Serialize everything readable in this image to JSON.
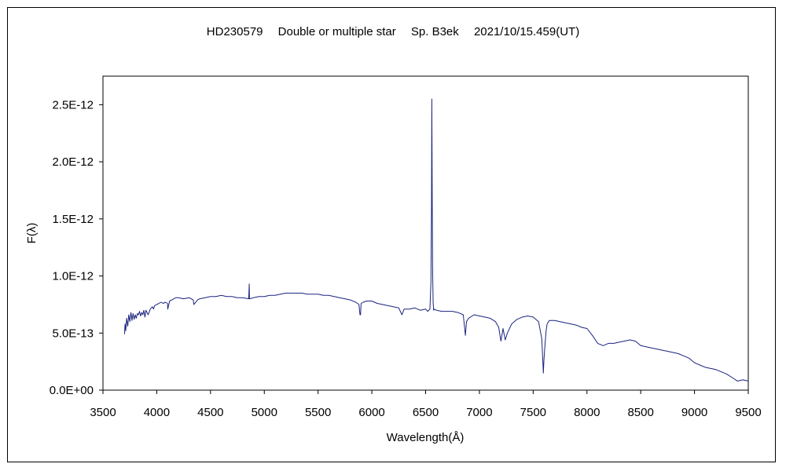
{
  "chart_data": {
    "type": "line",
    "title": "HD230579　 Double or multiple star 　Sp. B3ek 　2021/10/15.459(UT)",
    "xlabel": "Wavelength(Å)",
    "ylabel": "F(λ)",
    "xlim": [
      3500,
      9500
    ],
    "ylim": [
      0,
      2.75e-12
    ],
    "x_ticks": [
      3500,
      4000,
      4500,
      5000,
      5500,
      6000,
      6500,
      7000,
      7500,
      8000,
      8500,
      9000,
      9500
    ],
    "x_tick_labels": [
      "3500",
      "4000",
      "4500",
      "5000",
      "5500",
      "6000",
      "6500",
      "7000",
      "7500",
      "8000",
      "8500",
      "9000",
      "9500"
    ],
    "y_ticks": [
      0,
      5e-13,
      1e-12,
      1.5e-12,
      2e-12,
      2.5e-12
    ],
    "y_tick_labels": [
      "0.0E+00",
      "5.0E-13",
      "1.0E-12",
      "1.5E-12",
      "2.0E-12",
      "2.5E-12"
    ],
    "grid": false,
    "legend": "none",
    "line_color": "#1a237e",
    "series": [
      {
        "color": "#1a237e",
        "x": [
          3700,
          3705,
          3712,
          3720,
          3730,
          3740,
          3750,
          3760,
          3770,
          3780,
          3790,
          3800,
          3810,
          3820,
          3830,
          3840,
          3850,
          3860,
          3870,
          3880,
          3890,
          3900,
          3920,
          3940,
          3960,
          3970,
          3980,
          4000,
          4020,
          4040,
          4060,
          4080,
          4100,
          4102,
          4120,
          4140,
          4160,
          4180,
          4200,
          4250,
          4300,
          4340,
          4345,
          4380,
          4400,
          4450,
          4500,
          4550,
          4600,
          4650,
          4700,
          4750,
          4800,
          4855,
          4860,
          4862,
          4865,
          4900,
          4950,
          5000,
          5050,
          5100,
          5150,
          5200,
          5250,
          5300,
          5350,
          5400,
          5450,
          5500,
          5550,
          5600,
          5650,
          5700,
          5750,
          5800,
          5850,
          5880,
          5890,
          5895,
          5900,
          5920,
          5950,
          6000,
          6050,
          6100,
          6150,
          6200,
          6250,
          6280,
          6300,
          6350,
          6400,
          6450,
          6500,
          6520,
          6540,
          6550,
          6555,
          6558,
          6562,
          6566,
          6570,
          6575,
          6580,
          6600,
          6650,
          6700,
          6750,
          6800,
          6850,
          6870,
          6880,
          6900,
          6950,
          7000,
          7050,
          7100,
          7150,
          7180,
          7200,
          7220,
          7240,
          7260,
          7300,
          7350,
          7400,
          7450,
          7500,
          7550,
          7580,
          7595,
          7600,
          7610,
          7620,
          7630,
          7650,
          7700,
          7750,
          7800,
          7850,
          7900,
          7950,
          8000,
          8050,
          8100,
          8150,
          8200,
          8250,
          8300,
          8350,
          8400,
          8450,
          8500,
          8550,
          8600,
          8650,
          8700,
          8750,
          8800,
          8850,
          8900,
          8950,
          9000,
          9050,
          9100,
          9150,
          9200,
          9250,
          9300,
          9350,
          9400,
          9450,
          9500
        ],
        "y": [
          4.9e-13,
          5.8e-13,
          5.2e-13,
          6.3e-13,
          5.6e-13,
          6.6e-13,
          6e-13,
          6.8e-13,
          6.1e-13,
          6.7e-13,
          6.2e-13,
          6.6e-13,
          6.3e-13,
          6.7e-13,
          6.6e-13,
          6.9e-13,
          6.5e-13,
          6.8e-13,
          6.6e-13,
          7e-13,
          6.4e-13,
          7e-13,
          6.6e-13,
          7.1e-13,
          7.3e-13,
          7.1e-13,
          7.4e-13,
          7.5e-13,
          7.6e-13,
          7.7e-13,
          7.6e-13,
          7.7e-13,
          7.6e-13,
          7.1e-13,
          7.8e-13,
          7.9e-13,
          8e-13,
          8.1e-13,
          8.1e-13,
          8e-13,
          8.1e-13,
          7.9e-13,
          7.5e-13,
          7.9e-13,
          8e-13,
          8.1e-13,
          8.2e-13,
          8.2e-13,
          8.3e-13,
          8.2e-13,
          8.2e-13,
          8.1e-13,
          8.1e-13,
          8e-13,
          9.3e-13,
          8e-13,
          8e-13,
          8.1e-13,
          8.2e-13,
          8.2e-13,
          8.3e-13,
          8.3e-13,
          8.4e-13,
          8.5e-13,
          8.5e-13,
          8.5e-13,
          8.5e-13,
          8.4e-13,
          8.4e-13,
          8.4e-13,
          8.3e-13,
          8.3e-13,
          8.2e-13,
          8.1e-13,
          8e-13,
          7.9e-13,
          7.7e-13,
          7.5e-13,
          6.6e-13,
          6.6e-13,
          7.6e-13,
          7.7e-13,
          7.8e-13,
          7.8e-13,
          7.6e-13,
          7.5e-13,
          7.4e-13,
          7.3e-13,
          7.2e-13,
          6.6e-13,
          7.1e-13,
          7.1e-13,
          7.2e-13,
          7e-13,
          7.1e-13,
          6.9e-13,
          7.1e-13,
          9.5e-13,
          1.6e-12,
          2.55e-12,
          1.5e-12,
          1e-12,
          7.6e-13,
          7e-13,
          7.1e-13,
          7e-13,
          6.9e-13,
          6.9e-13,
          6.9e-13,
          6.8e-13,
          6.6e-13,
          4.8e-13,
          6e-13,
          6.3e-13,
          6.6e-13,
          6.5e-13,
          6.4e-13,
          6.3e-13,
          6e-13,
          5.5e-13,
          4.3e-13,
          5.4e-13,
          4.4e-13,
          5e-13,
          5.8e-13,
          6.2e-13,
          6.4e-13,
          6.5e-13,
          6.4e-13,
          6e-13,
          4.5e-13,
          1.5e-13,
          2.6e-13,
          4e-13,
          5.2e-13,
          5.8e-13,
          6.1e-13,
          6.1e-13,
          6e-13,
          5.9e-13,
          5.8e-13,
          5.7e-13,
          5.5e-13,
          5.4e-13,
          4.8e-13,
          4.1e-13,
          3.9e-13,
          4.1e-13,
          4.1e-13,
          4.2e-13,
          4.3e-13,
          4.4e-13,
          4.3e-13,
          3.9e-13,
          3.8e-13,
          3.7e-13,
          3.6e-13,
          3.5e-13,
          3.4e-13,
          3.3e-13,
          3.2e-13,
          3e-13,
          2.8e-13,
          2.4e-13,
          2.2e-13,
          2e-13,
          1.9e-13,
          1.8e-13,
          1.6e-13,
          1.4e-13,
          1.1e-13,
          8e-14,
          9e-14,
          8e-14
        ]
      }
    ]
  }
}
